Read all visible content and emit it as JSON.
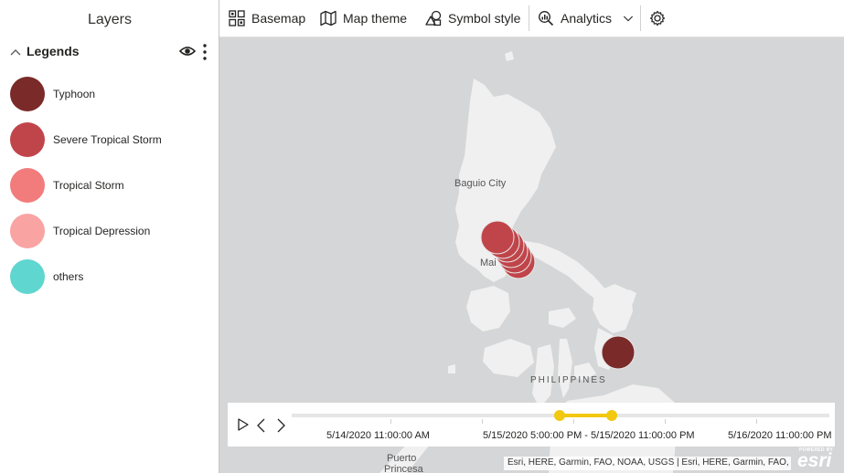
{
  "panel": {
    "title": "Layers",
    "legends_title": "Legends",
    "legend_items": [
      {
        "label": "Typhoon",
        "color": "#7b2a2a"
      },
      {
        "label": "Severe Tropical Storm",
        "color": "#c0454a"
      },
      {
        "label": "Tropical Storm",
        "color": "#f27c7c"
      },
      {
        "label": "Tropical Depression",
        "color": "#f9a3a3"
      },
      {
        "label": "others",
        "color": "#5fd6cf"
      }
    ]
  },
  "toolbar": {
    "basemap": "Basemap",
    "map_theme": "Map theme",
    "symbol_style": "Symbol style",
    "analytics": "Analytics"
  },
  "map": {
    "labels": {
      "baguio": "Baguio City",
      "manila": "Mai",
      "philippines": "PHILIPPINES",
      "puerto": "Puerto",
      "princesa": "Princesa"
    }
  },
  "time_slider": {
    "start_label": "5/14/2020 11:00:00 AM",
    "range_label": "5/15/2020 5:00:00 PM - 5/15/2020 11:00:00 PM",
    "end_label": "5/16/2020 11:00:00 PM",
    "range_start_fraction": 0.498,
    "range_end_fraction": 0.595
  },
  "attribution": "Esri, HERE, Garmin, FAO, NOAA, USGS | Esri, HERE, Garmin, FAO, NOAA, USGS",
  "esri_logo": {
    "powered": "POWERED BY",
    "text": "esri"
  }
}
